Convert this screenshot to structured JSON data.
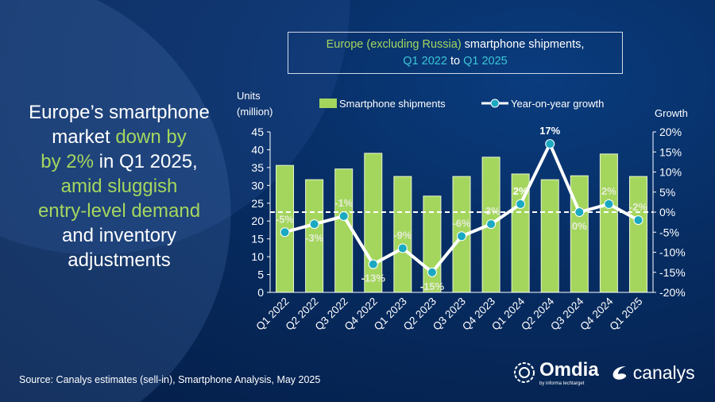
{
  "headline": {
    "l1": "Europe’s smartphone",
    "l2a": "market ",
    "l2b": "down by",
    "l3a": "by 2%",
    "l3b": " in Q1 2025,",
    "l4": "amid sluggish",
    "l5": "entry-level demand",
    "l6": "and inventory",
    "l7": "adjustments"
  },
  "chart_data": {
    "type": "bar+line",
    "title": {
      "a": "Europe (excluding Russia)",
      "b": " smartphone shipments,",
      "c": "Q1 2022",
      "d": " to ",
      "e": "Q1 2025"
    },
    "categories": [
      "Q1 2022",
      "Q2 2022",
      "Q3 2022",
      "Q4 2022",
      "Q1 2023",
      "Q2 2023",
      "Q3 2023",
      "Q4 2023",
      "Q1 2024",
      "Q2 2024",
      "Q3 2024",
      "Q4 2024",
      "Q1 2025"
    ],
    "series": [
      {
        "name": "Smartphone shipments",
        "type": "bar",
        "axis": "left",
        "color": "#a4d65e",
        "values": [
          35.6,
          31.6,
          34.6,
          39.0,
          32.5,
          27.0,
          32.5,
          37.9,
          33.2,
          31.6,
          32.7,
          38.8,
          32.5
        ]
      },
      {
        "name": "Year-on-year growth",
        "type": "line",
        "axis": "right",
        "color": "#ffffff",
        "marker_color": "#1aa9c0",
        "values": [
          -5,
          -3,
          -1,
          -13,
          -9,
          -15,
          -6,
          -3,
          2,
          17,
          0,
          2,
          -2
        ],
        "labels": [
          "-5%",
          "-3%",
          "-1%",
          "-13%",
          "-9%",
          "-15%",
          "-6%",
          "-3%",
          "2%",
          "17%",
          "0%",
          "2%",
          "-2%"
        ]
      }
    ],
    "ylabel_left": "Units (million)",
    "ylabel_left_l1": "Units",
    "ylabel_left_l2": "(million)",
    "ylabel_right": "Growth",
    "ylim_left": [
      0,
      45
    ],
    "yticks_left": [
      "0",
      "5",
      "10",
      "15",
      "20",
      "25",
      "30",
      "35",
      "40",
      "45"
    ],
    "ylim_right": [
      -20,
      20
    ],
    "yticks_right": [
      "-20%",
      "-15%",
      "-10%",
      "-5%",
      "0%",
      "5%",
      "10%",
      "15%",
      "20%"
    ],
    "grid": false,
    "zero_line": "dashed",
    "legend": "top"
  },
  "source": "Source: Canalys estimates (sell-in), Smartphone Analysis, May 2025",
  "logos": {
    "omdia": "Omdia",
    "omdia_sub": "by informa techtarget",
    "canalys": "canalys"
  }
}
